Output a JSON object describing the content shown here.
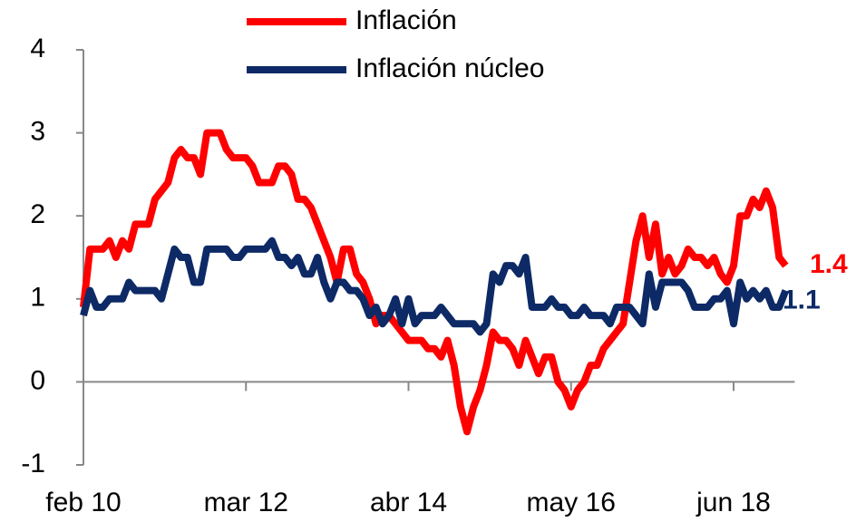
{
  "chart_data": {
    "type": "line",
    "categories": [
      "feb 10",
      null,
      null,
      null,
      null,
      null,
      null,
      null,
      null,
      null,
      null,
      null,
      null,
      null,
      null,
      null,
      null,
      null,
      null,
      null,
      null,
      null,
      null,
      null,
      null,
      "mar 12",
      null,
      null,
      null,
      null,
      null,
      null,
      null,
      null,
      null,
      null,
      null,
      null,
      null,
      null,
      null,
      null,
      null,
      null,
      null,
      null,
      null,
      null,
      null,
      null,
      "abr 14",
      null,
      null,
      null,
      null,
      null,
      null,
      null,
      null,
      null,
      null,
      null,
      null,
      null,
      null,
      null,
      null,
      null,
      null,
      null,
      null,
      null,
      null,
      null,
      null,
      "may 16",
      null,
      null,
      null,
      null,
      null,
      null,
      null,
      null,
      null,
      null,
      null,
      null,
      null,
      null,
      null,
      null,
      null,
      null,
      null,
      null,
      null,
      null,
      null,
      null,
      "jun 18",
      null,
      null,
      null,
      null,
      null,
      null,
      null,
      null
    ],
    "series": [
      {
        "name": "Inflación",
        "color": "#ff0000",
        "values": [
          0.9,
          1.6,
          1.6,
          1.6,
          1.7,
          1.5,
          1.7,
          1.6,
          1.9,
          1.9,
          1.9,
          2.2,
          2.3,
          2.4,
          2.7,
          2.8,
          2.7,
          2.7,
          2.5,
          3.0,
          3.0,
          3.0,
          2.8,
          2.7,
          2.7,
          2.7,
          2.6,
          2.4,
          2.4,
          2.4,
          2.6,
          2.6,
          2.5,
          2.2,
          2.2,
          2.1,
          1.9,
          1.7,
          1.5,
          1.2,
          1.6,
          1.6,
          1.3,
          1.2,
          1.0,
          0.7,
          0.8,
          0.8,
          0.7,
          0.6,
          0.5,
          0.5,
          0.5,
          0.4,
          0.4,
          0.3,
          0.5,
          0.2,
          -0.3,
          -0.6,
          -0.3,
          -0.1,
          0.2,
          0.6,
          0.5,
          0.5,
          0.4,
          0.2,
          0.5,
          0.3,
          0.1,
          0.3,
          0.3,
          0.0,
          -0.1,
          -0.3,
          -0.1,
          0.0,
          0.2,
          0.2,
          0.4,
          0.5,
          0.6,
          0.7,
          1.2,
          1.7,
          2.0,
          1.5,
          1.9,
          1.3,
          1.5,
          1.3,
          1.4,
          1.6,
          1.5,
          1.5,
          1.4,
          1.5,
          1.3,
          1.2,
          1.4,
          2.0,
          2.0,
          2.2,
          2.1,
          2.3,
          2.1,
          1.5,
          1.4
        ]
      },
      {
        "name": "Inflación núcleo",
        "color": "#0d2a66",
        "values": [
          0.8,
          1.1,
          0.9,
          0.9,
          1.0,
          1.0,
          1.0,
          1.2,
          1.1,
          1.1,
          1.1,
          1.1,
          1.0,
          1.3,
          1.6,
          1.5,
          1.5,
          1.2,
          1.2,
          1.6,
          1.6,
          1.6,
          1.6,
          1.5,
          1.5,
          1.6,
          1.6,
          1.6,
          1.6,
          1.7,
          1.5,
          1.5,
          1.4,
          1.5,
          1.3,
          1.3,
          1.5,
          1.2,
          1.0,
          1.2,
          1.2,
          1.1,
          1.1,
          1.0,
          0.8,
          0.9,
          0.7,
          0.8,
          1.0,
          0.7,
          1.0,
          0.7,
          0.8,
          0.8,
          0.8,
          0.9,
          0.8,
          0.7,
          0.7,
          0.7,
          0.7,
          0.6,
          0.7,
          1.3,
          1.2,
          1.4,
          1.4,
          1.3,
          1.5,
          0.9,
          0.9,
          0.9,
          1.0,
          0.9,
          0.9,
          0.8,
          0.8,
          0.9,
          0.8,
          0.8,
          0.8,
          0.7,
          0.9,
          0.9,
          0.9,
          0.8,
          0.7,
          1.3,
          0.9,
          1.2,
          1.2,
          1.2,
          1.2,
          1.1,
          0.9,
          0.9,
          0.9,
          1.0,
          1.0,
          1.1,
          0.7,
          1.2,
          1.0,
          1.1,
          1.0,
          1.1,
          0.9,
          0.9,
          1.1
        ]
      }
    ],
    "ylim": [
      -1,
      4
    ],
    "yticks": [
      -1,
      0,
      1,
      2,
      3,
      4
    ]
  }
}
